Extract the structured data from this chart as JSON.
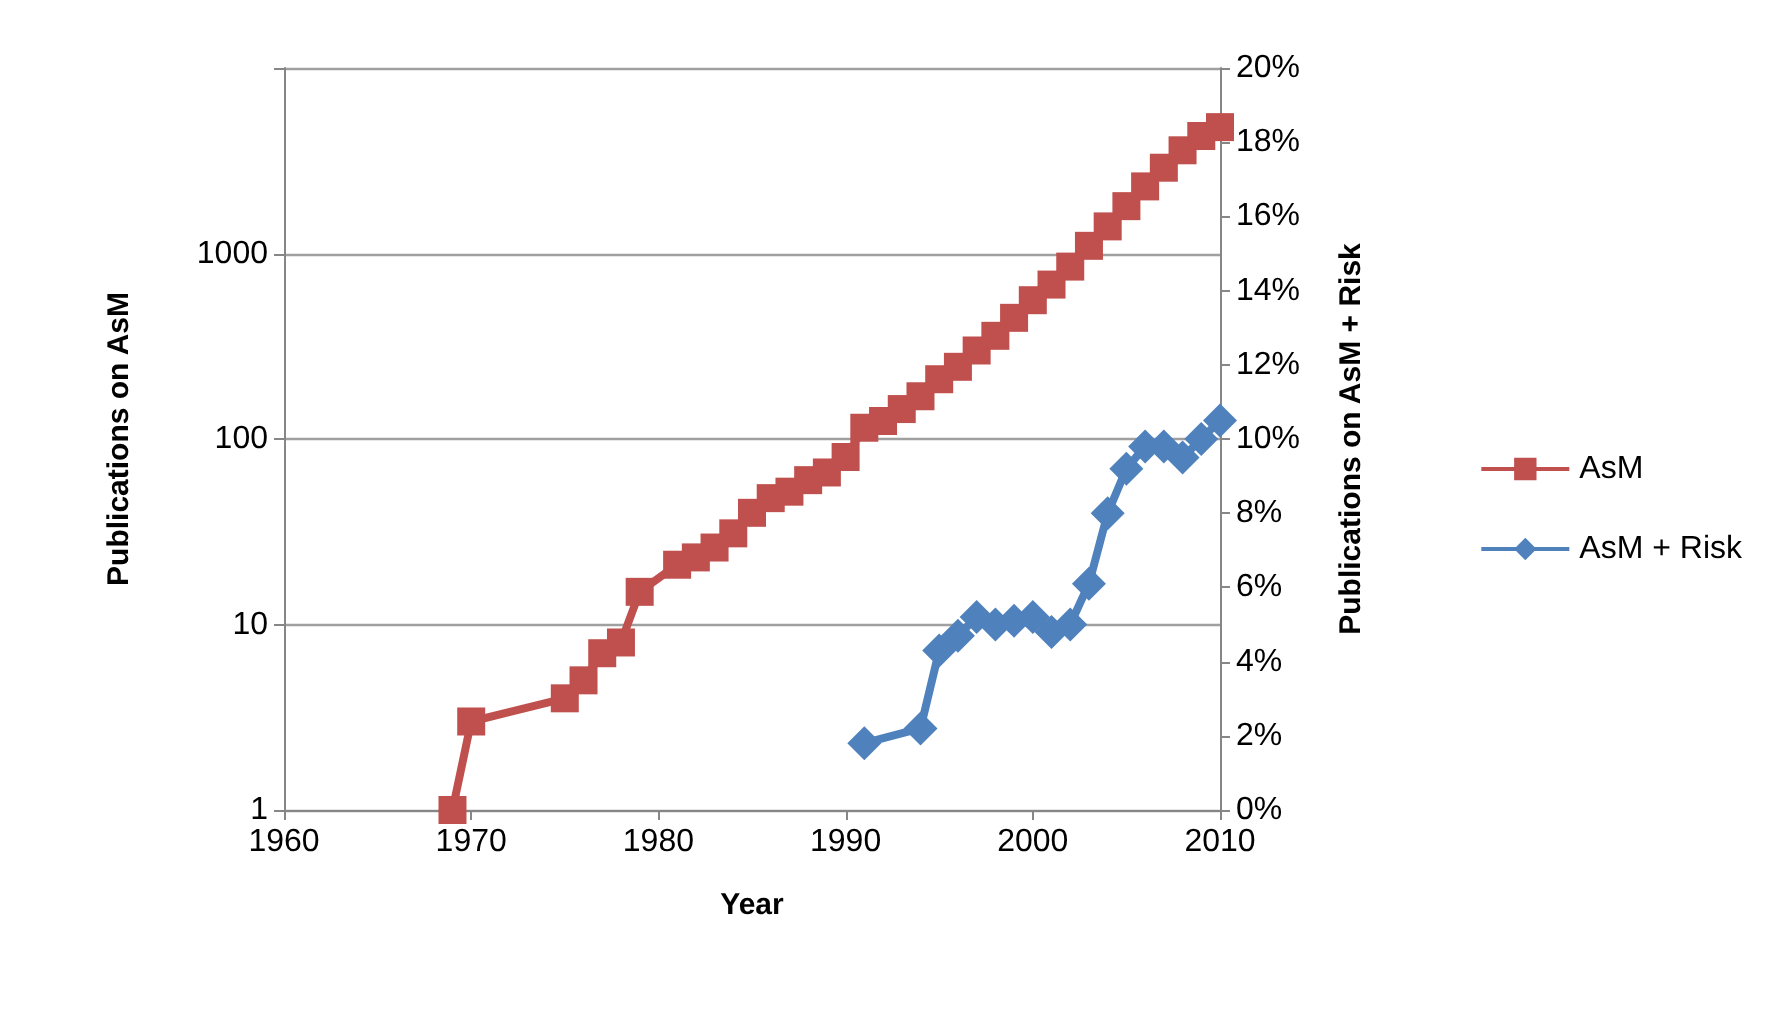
{
  "chart_data": {
    "type": "line",
    "xlabel": "Year",
    "ylabel": "Publications on AsM",
    "y2label": "Publications on AsM + Risk",
    "log": "y",
    "grid": "y",
    "legend": "right",
    "line_style": "solid",
    "xlim": [
      1960,
      2010
    ],
    "xticks": [
      1960,
      1970,
      1980,
      1990,
      2000,
      2010
    ],
    "ylim": [
      1,
      10000
    ],
    "yticks": [
      1,
      10,
      100,
      1000,
      {
        "value": 10000,
        "label": null
      }
    ],
    "y2lim": [
      0,
      20
    ],
    "y2ticks": [
      {
        "value": 0,
        "label": "0%"
      },
      {
        "value": 2,
        "label": "2%"
      },
      {
        "value": 4,
        "label": "4%"
      },
      {
        "value": 6,
        "label": "6%"
      },
      {
        "value": 8,
        "label": "8%"
      },
      {
        "value": 10,
        "label": "10%"
      },
      {
        "value": 12,
        "label": "12%"
      },
      {
        "value": 14,
        "label": "14%"
      },
      {
        "value": 16,
        "label": "16%"
      },
      {
        "value": 18,
        "label": "18%"
      },
      {
        "value": 20,
        "label": "20%"
      }
    ],
    "series": [
      {
        "name": "AsM",
        "color": "#c0504d",
        "marker": "square",
        "x": [
          1969,
          1970,
          1975,
          1976,
          1977,
          1978,
          1979,
          1981,
          1982,
          1983,
          1984,
          1985,
          1986,
          1987,
          1988,
          1989,
          1990,
          1991,
          1992,
          1993,
          1994,
          1995,
          1996,
          1997,
          1998,
          1999,
          2000,
          2001,
          2002,
          2003,
          2004,
          2005,
          2006,
          2007,
          2008,
          2009,
          2010
        ],
        "values": [
          1,
          3,
          4,
          5,
          7,
          8,
          15,
          21,
          23,
          26,
          31,
          40,
          48,
          52,
          60,
          66,
          80,
          115,
          125,
          145,
          170,
          210,
          245,
          300,
          360,
          450,
          560,
          680,
          850,
          1100,
          1400,
          1800,
          2300,
          2900,
          3600,
          4300,
          4800
        ]
      },
      {
        "name": "AsM + Risk",
        "color": "#4f81bd",
        "marker": "diamond",
        "axis": "y2",
        "x": [
          1991,
          1994,
          1995,
          1996,
          1997,
          1998,
          1999,
          2000,
          2001,
          2002,
          2003,
          2004,
          2005,
          2006,
          2007,
          2008,
          2009,
          2010
        ],
        "values": [
          1.8,
          2.2,
          4.3,
          4.7,
          5.2,
          5.0,
          5.1,
          5.2,
          4.8,
          5.0,
          6.1,
          8.0,
          9.2,
          9.8,
          9.8,
          9.5,
          10.0,
          10.5
        ]
      }
    ]
  }
}
